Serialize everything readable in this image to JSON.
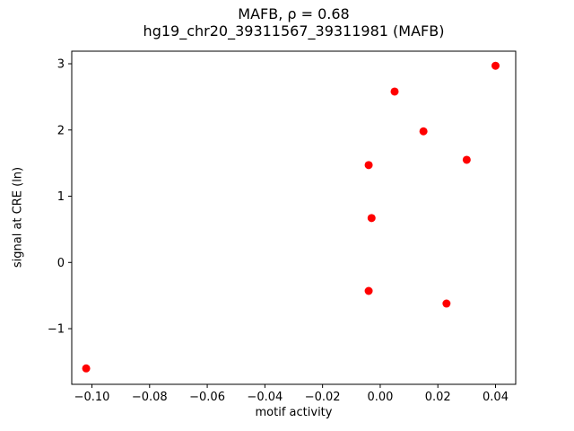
{
  "chart_data": {
    "type": "scatter",
    "title_line1": "MAFB, ρ = 0.68",
    "title_line2": "hg19_chr20_39311567_39311981 (MAFB)",
    "xlabel": "motif activity",
    "ylabel": "signal at CRE (ln)",
    "xlim": [
      -0.107,
      0.047
    ],
    "ylim": [
      -1.84,
      3.19
    ],
    "xticks": [
      -0.1,
      -0.08,
      -0.06,
      -0.04,
      -0.02,
      0.0,
      0.02,
      0.04
    ],
    "xtick_labels": [
      "−0.10",
      "−0.08",
      "−0.06",
      "−0.04",
      "−0.02",
      "0.00",
      "0.02",
      "0.04"
    ],
    "yticks": [
      -1,
      0,
      1,
      2,
      3
    ],
    "ytick_labels": [
      "−1",
      "0",
      "1",
      "2",
      "3"
    ],
    "grid": false,
    "legend": null,
    "marker_color": "#ff0000",
    "axes_color": "#000000",
    "points": [
      {
        "x": -0.102,
        "y": -1.6
      },
      {
        "x": -0.004,
        "y": -0.43
      },
      {
        "x": -0.003,
        "y": 0.67
      },
      {
        "x": -0.004,
        "y": 1.47
      },
      {
        "x": 0.005,
        "y": 2.58
      },
      {
        "x": 0.015,
        "y": 1.98
      },
      {
        "x": 0.023,
        "y": -0.62
      },
      {
        "x": 0.03,
        "y": 1.55
      },
      {
        "x": 0.04,
        "y": 2.97
      }
    ]
  }
}
